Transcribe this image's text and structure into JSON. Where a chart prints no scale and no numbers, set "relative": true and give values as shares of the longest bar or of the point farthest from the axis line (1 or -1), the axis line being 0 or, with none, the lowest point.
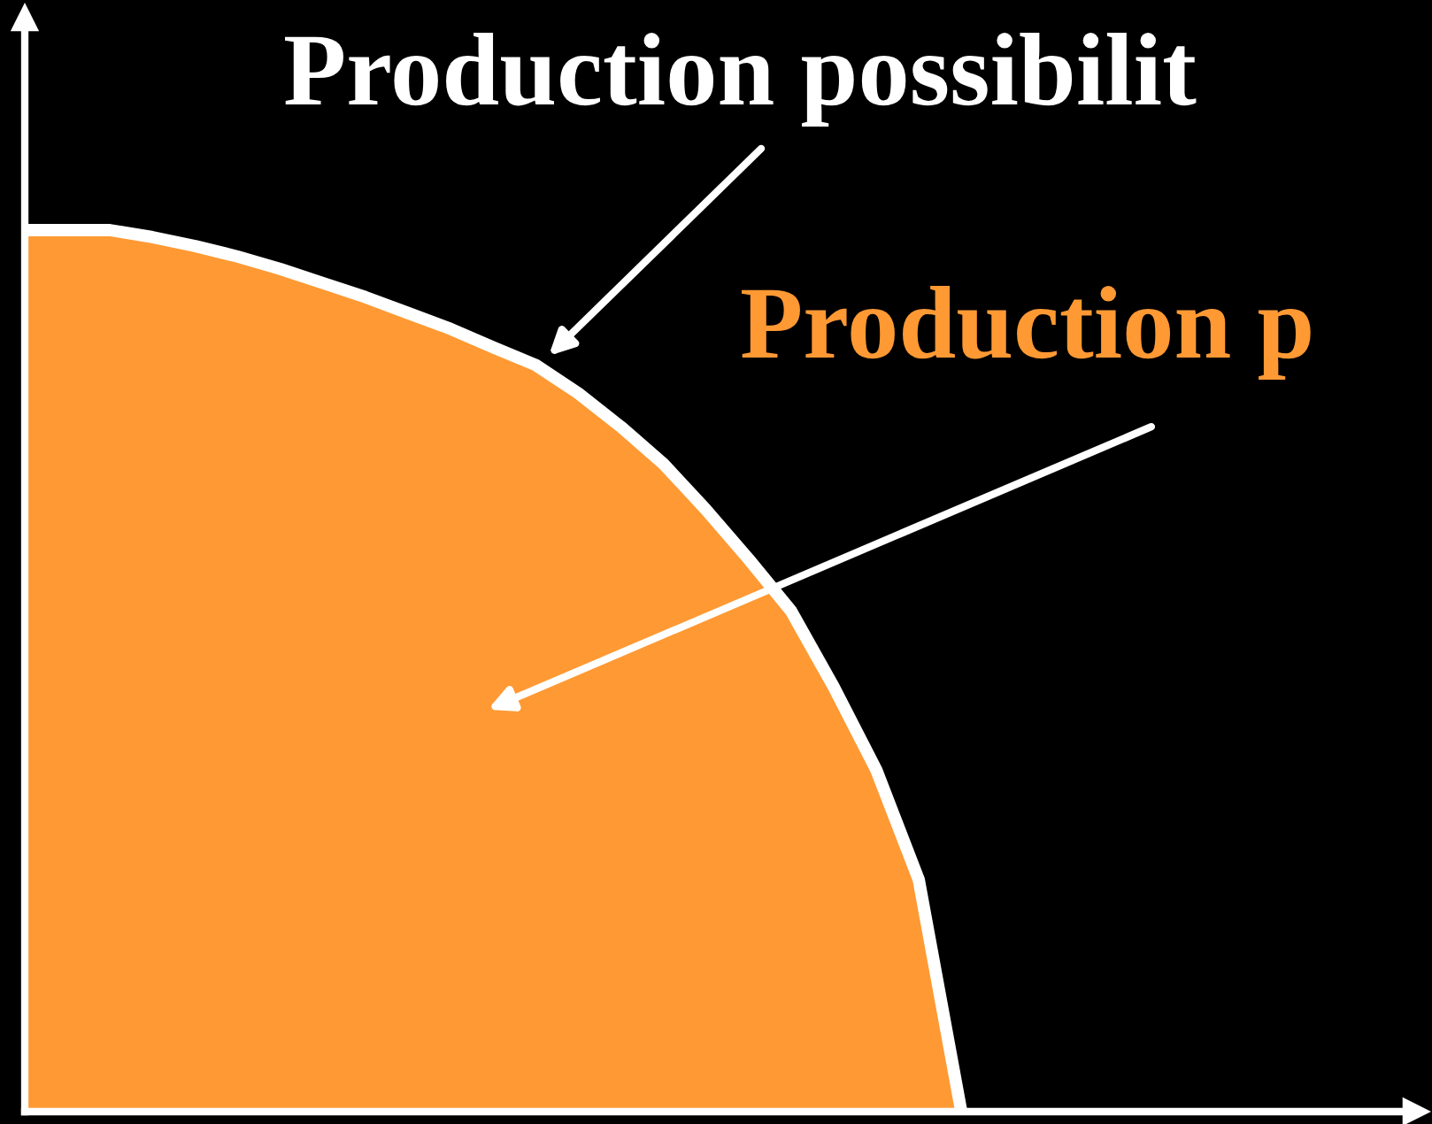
{
  "chart_data": {
    "type": "area",
    "relative": true,
    "categories": [
      null,
      null,
      null,
      null,
      null,
      null,
      null,
      null,
      null,
      null,
      null,
      null,
      null,
      null,
      null,
      null,
      null,
      null,
      null,
      null,
      null,
      null,
      null
    ],
    "series": [
      {
        "color": "#ff9933",
        "values": [
          1.0,
          1.0,
          1.0,
          0.992,
          0.982,
          0.97,
          0.956,
          0.94,
          0.924,
          0.906,
          0.888,
          0.867,
          0.847,
          0.815,
          0.777,
          0.735,
          0.683,
          0.627,
          0.568,
          0.482,
          0.388,
          0.263,
          0.0
        ]
      }
    ],
    "annotations": [
      "Production possibilit",
      "Production p"
    ]
  }
}
